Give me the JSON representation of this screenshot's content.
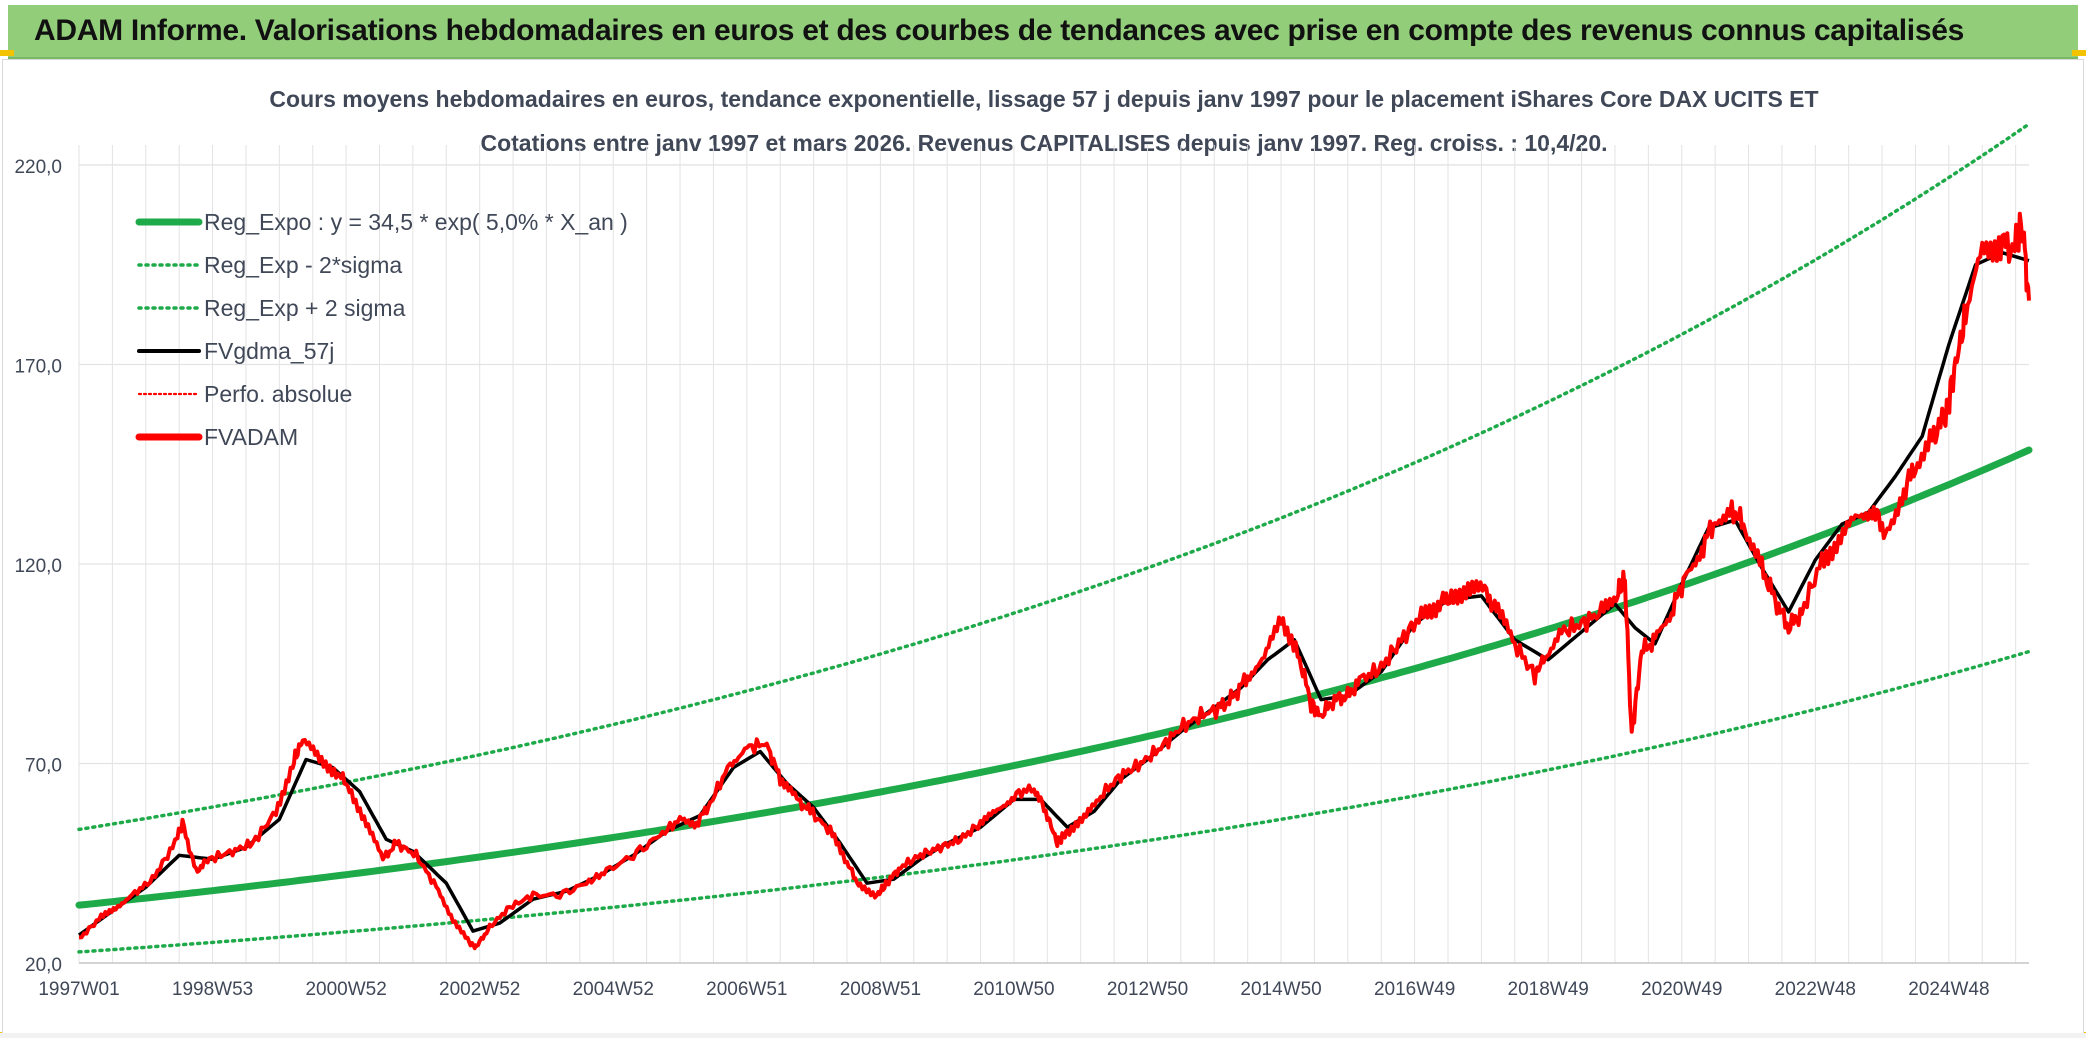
{
  "banner": {
    "title": "ADAM Informe. Valorisations hebdomadaires en euros et des courbes de tendances avec prise en compte des revenus connus capitalisés"
  },
  "colors": {
    "banner_bg": "#92cd7a",
    "reg_expo": "#1faa4a",
    "band": "#1faa4a",
    "fvgdma": "#000000",
    "fvadam": "#ff0000",
    "perfo": "#ff0000",
    "grid": "#e3e3e3"
  },
  "chart_data": {
    "type": "line",
    "title_line1": "Cours moyens hebdomadaires en euros, tendance exponentielle, lissage 57 j depuis janv 1997 pour le placement iShares Core DAX UCITS ET",
    "title_line2": "Cotations entre janv 1997 et mars 2026. Revenus CAPITALISES depuis janv 1997. Reg. croiss. : 10,4/20.",
    "xlabel": "",
    "ylabel": "",
    "ylim": [
      20,
      225
    ],
    "xlim": [
      1997.0,
      2026.2
    ],
    "yticks": [
      20,
      70,
      120,
      170,
      220
    ],
    "ytick_labels": [
      "20,0",
      "70,0",
      "120,0",
      "170,0",
      "220,0"
    ],
    "xticks": [
      1997.0,
      1999.0,
      2001.0,
      2003.0,
      2005.0,
      2007.0,
      2009.0,
      2011.0,
      2013.0,
      2015.0,
      2017.0,
      2019.0,
      2021.0,
      2023.0,
      2025.0
    ],
    "xtick_labels": [
      "1997W01",
      "1998W53",
      "2000W52",
      "2002W52",
      "2004W52",
      "2006W51",
      "2008W51",
      "2010W50",
      "2012W50",
      "2014W50",
      "2016W49",
      "2018W49",
      "2020W49",
      "2022W48",
      "2024W48"
    ],
    "grid": true,
    "legend_position": "top-left",
    "legend": [
      {
        "label": "Reg_Expo : y = 34,5 * exp( 5,0% *  X_an )",
        "style": "solid-thick",
        "color": "#1faa4a"
      },
      {
        "label": "Reg_Exp - 2*sigma",
        "style": "dotted",
        "color": "#1faa4a"
      },
      {
        "label": "Reg_Exp + 2 sigma",
        "style": "dotted",
        "color": "#1faa4a"
      },
      {
        "label": "FVgdma_57j",
        "style": "solid",
        "color": "#000000"
      },
      {
        "label": "Perfo. absolue",
        "style": "dotted-thin",
        "color": "#ff0000"
      },
      {
        "label": "FVADAM",
        "style": "solid-thick",
        "color": "#ff0000"
      }
    ],
    "regression": {
      "a": 34.5,
      "b": 0.05,
      "x0": 1997.0,
      "lower_factor": 0.66,
      "upper_factor": 1.55
    },
    "series": [
      {
        "name": "FVADAM",
        "x": [
          1997.0,
          1997.3,
          1997.55,
          1997.8,
          1998.1,
          1998.4,
          1998.55,
          1998.75,
          1998.95,
          1999.3,
          1999.6,
          1999.95,
          2000.2,
          2000.35,
          2000.6,
          2000.85,
          2001.05,
          2001.3,
          2001.55,
          2001.75,
          2002.05,
          2002.35,
          2002.6,
          2002.85,
          2002.95,
          2003.15,
          2003.45,
          2003.8,
          2004.2,
          2004.6,
          2004.9,
          2005.3,
          2005.7,
          2006.0,
          2006.25,
          2006.45,
          2006.75,
          2007.0,
          2007.3,
          2007.5,
          2007.75,
          2007.95,
          2008.25,
          2008.5,
          2008.7,
          2008.95,
          2009.1,
          2009.3,
          2009.6,
          2009.9,
          2010.2,
          2010.5,
          2010.75,
          2011.0,
          2011.3,
          2011.5,
          2011.65,
          2011.8,
          2012.05,
          2012.3,
          2012.6,
          2012.9,
          2013.2,
          2013.5,
          2013.8,
          2014.1,
          2014.3,
          2014.5,
          2014.75,
          2015.0,
          2015.25,
          2015.45,
          2015.6,
          2015.8,
          2016.0,
          2016.2,
          2016.5,
          2016.8,
          2017.1,
          2017.35,
          2017.55,
          2017.8,
          2018.05,
          2018.25,
          2018.5,
          2018.8,
          2018.95,
          2019.2,
          2019.5,
          2019.8,
          2020.05,
          2020.15,
          2020.25,
          2020.4,
          2020.6,
          2020.85,
          2021.05,
          2021.3,
          2021.5,
          2021.75,
          2021.95,
          2022.2,
          2022.4,
          2022.6,
          2022.8,
          2023.1,
          2023.35,
          2023.6,
          2023.85,
          2024.05,
          2024.3,
          2024.5,
          2024.75,
          2024.95,
          2025.1,
          2025.25,
          2025.5,
          2025.75,
          2025.95,
          2026.1,
          2026.2
        ],
        "values": [
          26,
          31,
          34,
          37,
          41,
          49,
          55,
          43,
          46,
          48,
          50,
          58,
          70,
          76,
          71,
          68,
          64,
          55,
          46,
          50,
          47,
          39,
          31,
          25,
          24,
          29,
          34,
          37,
          37,
          40,
          43,
          47,
          52,
          56,
          55,
          60,
          70,
          74,
          75,
          66,
          61,
          58,
          53,
          45,
          39,
          37,
          40,
          44,
          47,
          49,
          51,
          55,
          58,
          62,
          64,
          57,
          50,
          53,
          56,
          62,
          67,
          70,
          74,
          79,
          82,
          84,
          87,
          92,
          96,
          107,
          98,
          85,
          82,
          86,
          87,
          91,
          94,
          101,
          107,
          110,
          112,
          114,
          113,
          108,
          100,
          92,
          97,
          103,
          105,
          108,
          113,
          116,
          77,
          98,
          101,
          108,
          117,
          124,
          131,
          134,
          129,
          119,
          111,
          104,
          108,
          121,
          126,
          131,
          134,
          128,
          137,
          145,
          152,
          157,
          170,
          182,
          198,
          201,
          199,
          205,
          186
        ]
      },
      {
        "name": "FVgdma_57j",
        "x": [
          1997.0,
          1997.5,
          1998.0,
          1998.5,
          1999.0,
          1999.5,
          2000.0,
          2000.4,
          2000.8,
          2001.2,
          2001.6,
          2002.0,
          2002.5,
          2002.9,
          2003.3,
          2003.8,
          2004.3,
          2004.8,
          2005.3,
          2005.8,
          2006.3,
          2006.8,
          2007.2,
          2007.6,
          2008.0,
          2008.4,
          2008.8,
          2009.2,
          2009.6,
          2010.0,
          2010.5,
          2011.0,
          2011.4,
          2011.8,
          2012.2,
          2012.6,
          2013.0,
          2013.5,
          2014.0,
          2014.4,
          2014.8,
          2015.2,
          2015.6,
          2016.0,
          2016.5,
          2017.0,
          2017.5,
          2018.0,
          2018.5,
          2019.0,
          2019.5,
          2020.0,
          2020.3,
          2020.6,
          2021.0,
          2021.4,
          2021.8,
          2022.2,
          2022.6,
          2023.0,
          2023.4,
          2023.8,
          2024.2,
          2024.6,
          2025.0,
          2025.4,
          2025.8,
          2026.2
        ],
        "values": [
          27,
          33,
          39,
          47,
          46,
          49,
          56,
          71,
          69,
          63,
          51,
          48,
          40,
          28,
          30,
          36,
          38,
          42,
          47,
          53,
          57,
          69,
          73,
          65,
          59,
          50,
          40,
          41,
          46,
          50,
          54,
          61,
          61,
          54,
          58,
          66,
          71,
          78,
          84,
          89,
          96,
          101,
          86,
          87,
          93,
          105,
          111,
          112,
          101,
          96,
          103,
          110,
          104,
          100,
          115,
          129,
          131,
          119,
          108,
          121,
          130,
          133,
          142,
          152,
          175,
          195,
          198,
          196
        ]
      }
    ]
  }
}
